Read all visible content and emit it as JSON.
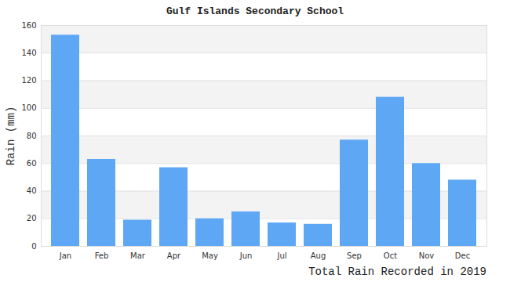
{
  "chart_data": {
    "type": "bar",
    "title": "Gulf Islands Secondary School",
    "y_label": "Rain (mm)",
    "caption": "Total Rain Recorded in 2019",
    "categories": [
      "Jan",
      "Feb",
      "Mar",
      "Apr",
      "May",
      "Jun",
      "Jul",
      "Aug",
      "Sep",
      "Oct",
      "Nov",
      "Dec"
    ],
    "values": [
      153,
      63,
      19,
      57,
      20,
      25,
      17,
      16,
      77,
      108,
      60,
      48
    ],
    "color": "#5ea7f5",
    "ylim": [
      0,
      160
    ],
    "yticks": [
      0,
      20,
      40,
      60,
      80,
      100,
      120,
      140,
      160
    ],
    "grid": true
  }
}
